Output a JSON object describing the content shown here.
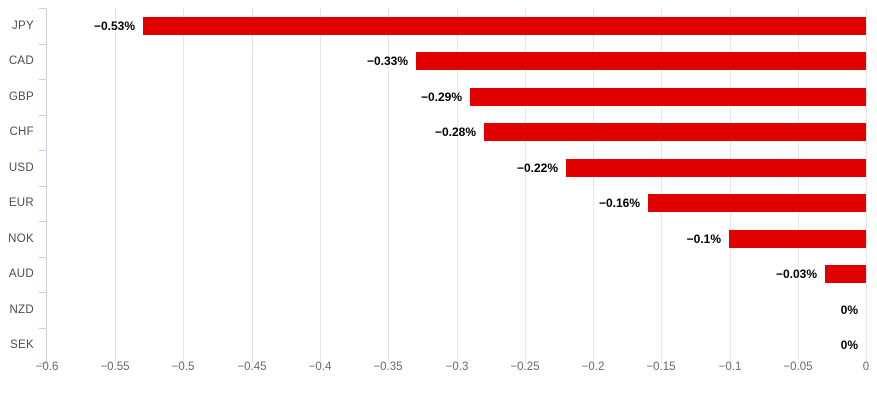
{
  "chart_data": {
    "type": "bar",
    "orientation": "horizontal",
    "title": "",
    "xlabel": "",
    "ylabel": "",
    "legend": false,
    "grid": true,
    "categories": [
      "JPY",
      "CAD",
      "GBP",
      "CHF",
      "USD",
      "EUR",
      "NOK",
      "AUD",
      "NZD",
      "SEK"
    ],
    "values": [
      -0.53,
      -0.33,
      -0.29,
      -0.28,
      -0.22,
      -0.16,
      -0.1,
      -0.03,
      0,
      0
    ],
    "value_labels": [
      "−0.53%",
      "−0.33%",
      "−0.29%",
      "−0.28%",
      "−0.22%",
      "−0.16%",
      "−0.1%",
      "−0.03%",
      "0%",
      "0%"
    ],
    "xlim": [
      -0.6,
      0
    ],
    "x_ticks": [
      -0.6,
      -0.55,
      -0.5,
      -0.45,
      -0.4,
      -0.35,
      -0.3,
      -0.25,
      -0.2,
      -0.15,
      -0.1,
      -0.05,
      0
    ],
    "x_tick_labels": [
      "−0.6",
      "−0.55",
      "−0.5",
      "−0.45",
      "−0.4",
      "−0.35",
      "−0.3",
      "−0.25",
      "−0.2",
      "−0.15",
      "−0.1",
      "−0.05",
      "0"
    ],
    "colors": {
      "bar": "#e00000",
      "gridline": "#e6e6e6",
      "axis_line": "#c7d1e0",
      "category_label": "#4d4d4d",
      "tick_label": "#696969",
      "value_label": "#000000",
      "background": "#ffffff"
    }
  }
}
